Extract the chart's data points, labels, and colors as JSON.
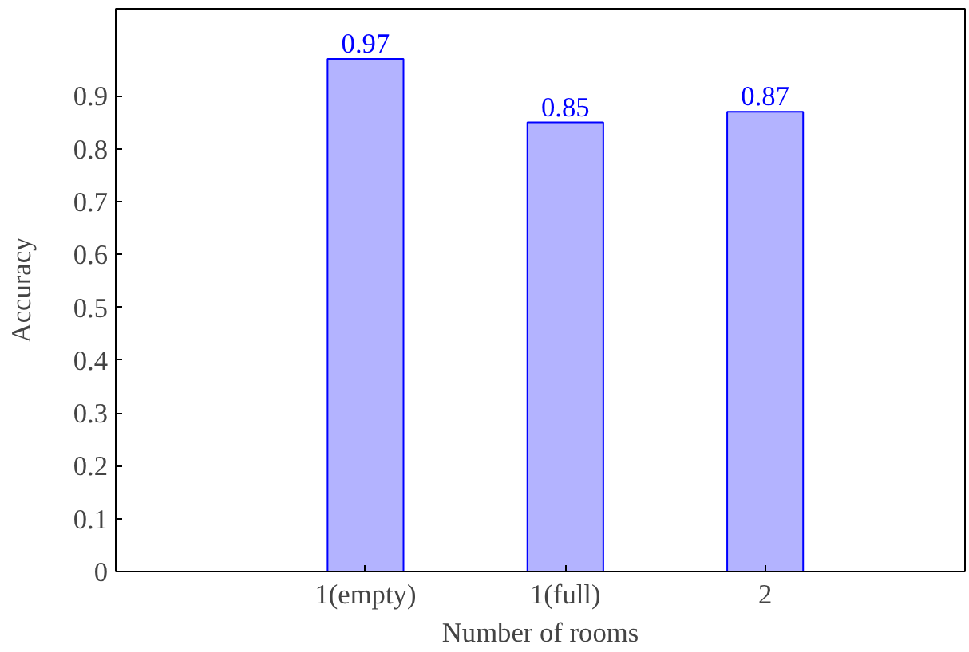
{
  "chart_data": {
    "type": "bar",
    "xlabel": "Number of rooms",
    "ylabel": "Accuracy",
    "categories": [
      "1(empty)",
      "1(full)",
      "2"
    ],
    "values": [
      0.97,
      0.85,
      0.87
    ],
    "color": "#b3b3ff",
    "ylim": [
      0,
      1.065
    ],
    "yticks": [
      0,
      0.1,
      0.2,
      0.3,
      0.4,
      0.5,
      0.6,
      0.7,
      0.8,
      0.9
    ],
    "data_labels": true,
    "grid": false
  }
}
